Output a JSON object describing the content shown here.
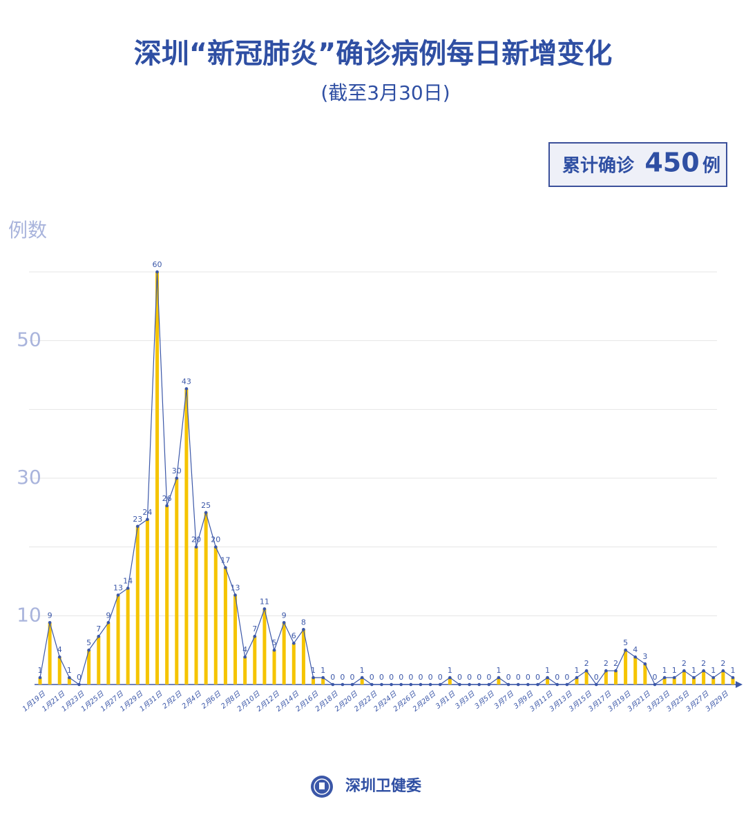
{
  "chart_data": {
    "type": "bar-line",
    "title": "深圳“新冠肺炎”确诊病例每日新增变化",
    "subtitle": "(截至3月30日)",
    "total_label": "累计确诊",
    "total_value": 450,
    "total_unit": "例",
    "y_label": "例数",
    "source": "深圳卫健委",
    "categories": [
      "1月19日",
      null,
      "1月21日",
      null,
      "1月23日",
      null,
      "1月25日",
      null,
      "1月27日",
      null,
      "1月29日",
      null,
      "1月31日",
      null,
      "2月2日",
      null,
      "2月4日",
      null,
      "2月6日",
      null,
      "2月8日",
      null,
      "2月10日",
      null,
      "2月12日",
      null,
      "2月14日",
      null,
      "2月16日",
      null,
      "2月18日",
      null,
      "2月20日",
      null,
      "2月22日",
      null,
      "2月24日",
      null,
      "2月26日",
      null,
      "2月28日",
      null,
      "3月1日",
      null,
      "3月3日",
      null,
      "3月5日",
      null,
      "3月7日",
      null,
      "3月9日",
      null,
      "3月11日",
      null,
      "3月13日",
      null,
      "3月15日",
      null,
      "3月17日",
      null,
      "3月19日",
      null,
      "3月21日",
      null,
      "3月23日",
      null,
      "3月25日",
      null,
      "3月27日",
      null,
      "3月29日",
      null
    ],
    "values": [
      1,
      9,
      4,
      1,
      0,
      5,
      7,
      9,
      13,
      14,
      23,
      24,
      60,
      26,
      30,
      43,
      20,
      25,
      20,
      17,
      13,
      4,
      7,
      11,
      5,
      9,
      6,
      8,
      1,
      1,
      0,
      0,
      0,
      1,
      0,
      0,
      0,
      0,
      0,
      0,
      0,
      0,
      1,
      0,
      0,
      0,
      0,
      1,
      0,
      0,
      0,
      0,
      1,
      0,
      0,
      1,
      2,
      0,
      2,
      2,
      5,
      4,
      3,
      0,
      1,
      1,
      2,
      1,
      2,
      1,
      2,
      1
    ],
    "bar_color": "#f5c400",
    "line_color": "#3b57a8",
    "ylim": [
      0,
      60
    ],
    "yticks": [
      10,
      30,
      50
    ],
    "minor_yticks": [
      20,
      40,
      60
    ],
    "grid": true
  }
}
